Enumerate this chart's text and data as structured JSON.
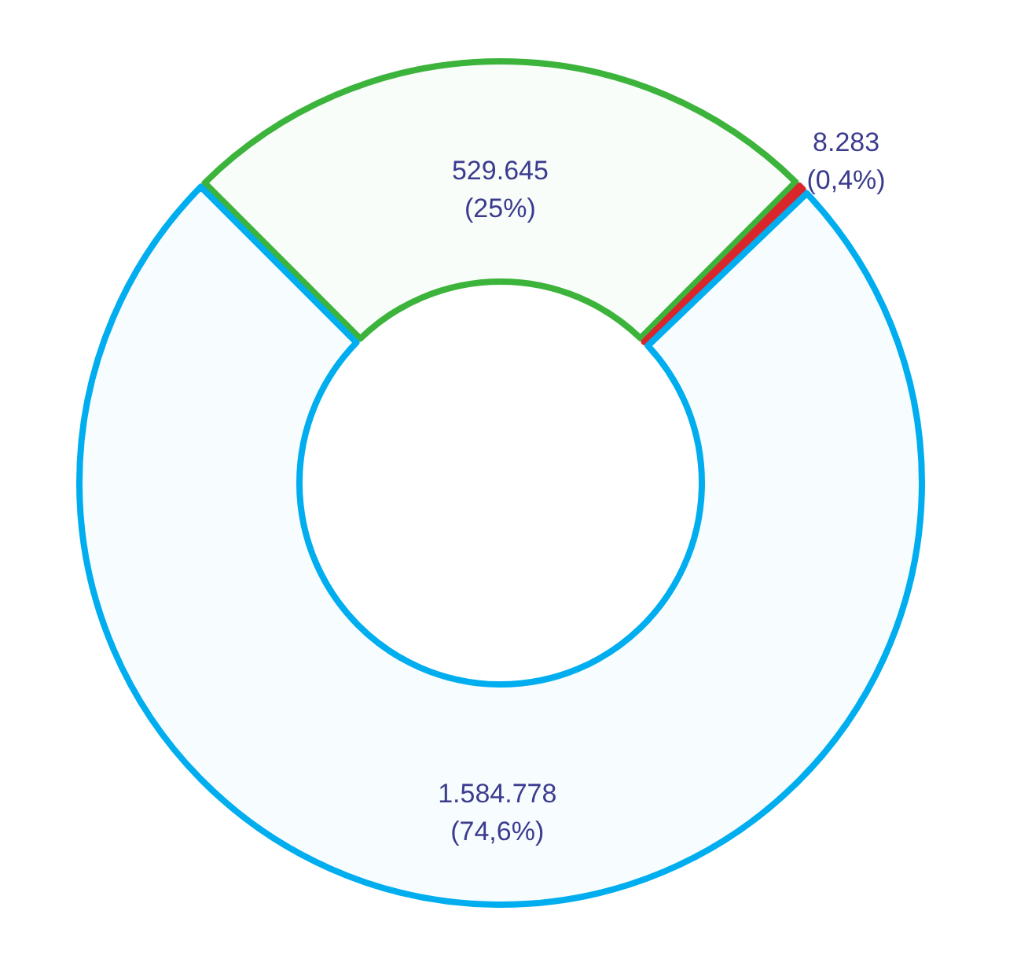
{
  "chart_data": {
    "type": "donut",
    "categories": [
      null,
      null,
      null
    ],
    "values": [
      529645,
      8283,
      1584778
    ],
    "colors": [
      "#3cb43c",
      "#d9262b",
      "#00aeef"
    ],
    "value_labels": [
      "529.645\n(25%)",
      "8.283\n(0,4%)",
      "1.584.778\n(74,6%)"
    ]
  }
}
